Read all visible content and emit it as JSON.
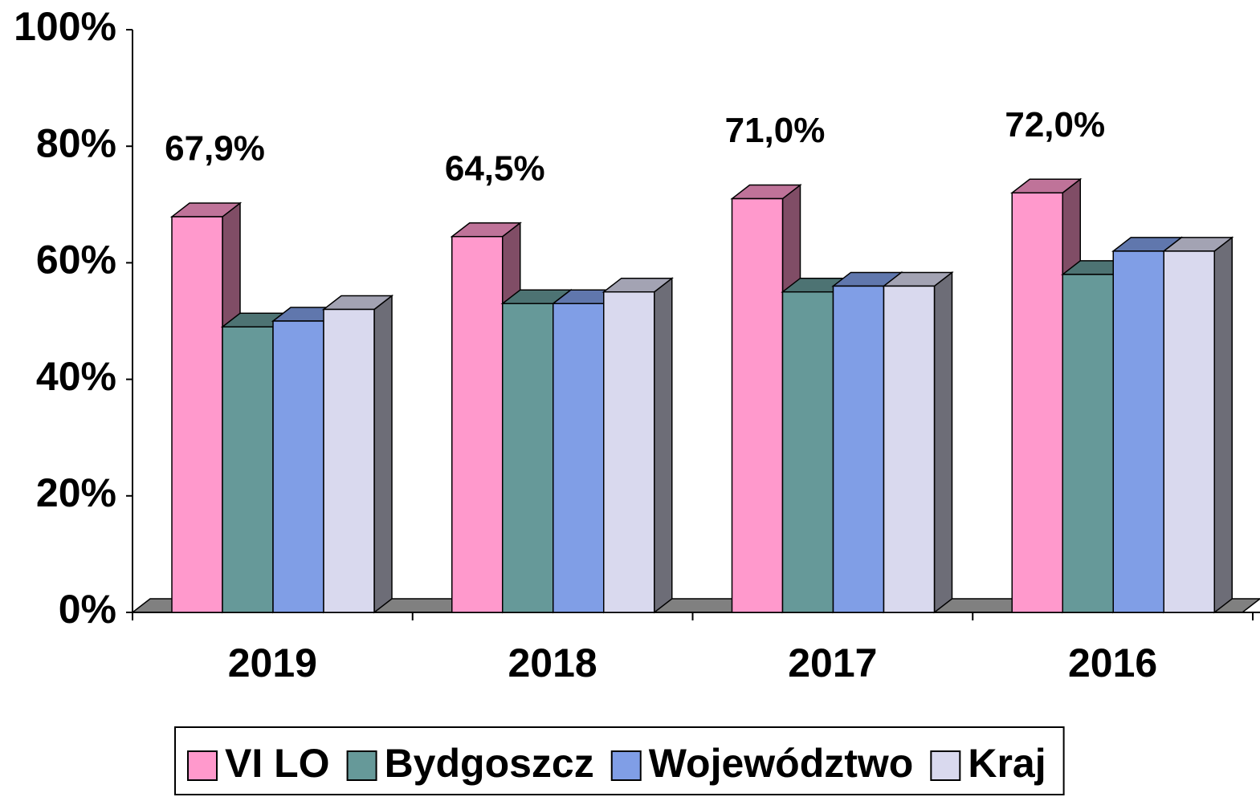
{
  "chart_data": {
    "type": "bar3d",
    "categories": [
      "2019",
      "2018",
      "2017",
      "2016"
    ],
    "series": [
      {
        "name": "VI LO",
        "color": "#ff99cc",
        "values": [
          67.9,
          64.5,
          71.0,
          72.0
        ],
        "value_labels": [
          "67,9%",
          "64,5%",
          "71,0%",
          "72,0%"
        ]
      },
      {
        "name": "Bydgoszcz",
        "color": "#669999",
        "values": [
          49,
          53,
          55,
          58
        ]
      },
      {
        "name": "Województwo",
        "color": "#809ee6",
        "values": [
          50,
          53,
          56,
          62
        ]
      },
      {
        "name": "Kraj",
        "color": "#d9d9ee",
        "values": [
          52,
          55,
          56,
          62
        ]
      }
    ],
    "ylim": [
      0,
      100
    ],
    "yticks": [
      {
        "value": 0,
        "label": "0%"
      },
      {
        "value": 20,
        "label": "20%"
      },
      {
        "value": 40,
        "label": "40%"
      },
      {
        "value": 60,
        "label": "60%"
      },
      {
        "value": 80,
        "label": "80%"
      },
      {
        "value": 100,
        "label": "100%"
      }
    ],
    "legend": "bottom"
  }
}
